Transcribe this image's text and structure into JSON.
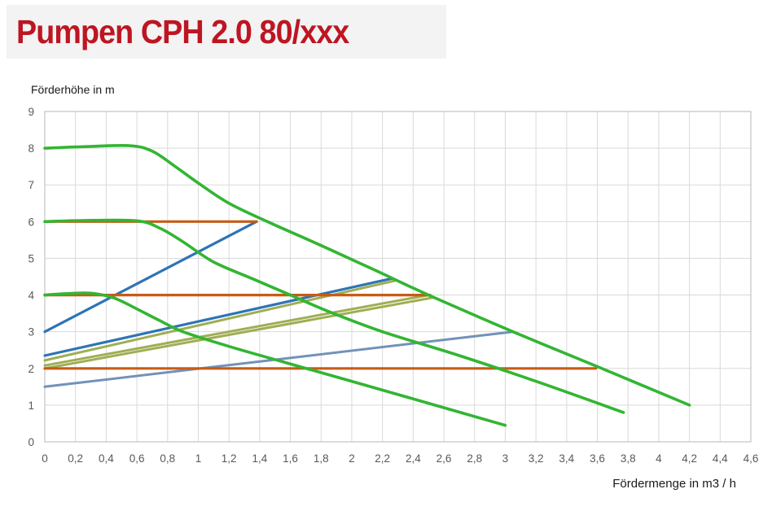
{
  "page": {
    "title": "Pumpen CPH 2.0 80/xxx"
  },
  "colors": {
    "title_red": "#bd1622",
    "pump_green": "#33b533",
    "setpoint_orange": "#c75b16",
    "line_blue": "#2e74b5",
    "line_steel_blue": "#7292b8",
    "line_olive": "#9fae53",
    "grid_gray": "#d9d9d9",
    "plot_border_gray": "#c3c3c3",
    "tick_text_gray": "#595959"
  },
  "chart_data": {
    "type": "line",
    "title": "Pumpen CPH 2.0 80/xxx",
    "ylabel": "Förderhöhe in m",
    "xlabel": "Fördermenge in m3 / h",
    "xlim": [
      0,
      4.6
    ],
    "ylim": [
      0,
      9
    ],
    "grid": {
      "x_step": 0.2,
      "y_step": 1,
      "visible": true
    },
    "legend": "none",
    "x_tick_labels": [
      "0",
      "0,2",
      "0,4",
      "0,6",
      "0,8",
      "1",
      "1,2",
      "1,4",
      "1,6",
      "1,8",
      "2",
      "2,2",
      "2,4",
      "2,6",
      "2,8",
      "3",
      "3,2",
      "3,4",
      "3,6",
      "3,8",
      "4",
      "4,2",
      "4,4",
      "4,6"
    ],
    "y_tick_labels": [
      "0",
      "1",
      "2",
      "3",
      "4",
      "5",
      "6",
      "7",
      "8",
      "9"
    ],
    "series": [
      {
        "name": "system-curve-olive-1",
        "color": "#9fae53",
        "width": 3,
        "smooth": false,
        "points": [
          [
            0,
            2.22
          ],
          [
            2.28,
            4.39
          ]
        ]
      },
      {
        "name": "system-curve-olive-2",
        "color": "#9fae53",
        "width": 3,
        "smooth": false,
        "points": [
          [
            0,
            2.08
          ],
          [
            2.5,
            4.0
          ]
        ]
      },
      {
        "name": "system-curve-olive-3",
        "color": "#9fae53",
        "width": 3,
        "smooth": false,
        "points": [
          [
            0,
            2.0
          ],
          [
            2.53,
            3.93
          ]
        ]
      },
      {
        "name": "proportional-pressure-steel-blue",
        "color": "#7292b8",
        "width": 3,
        "smooth": false,
        "points": [
          [
            0,
            1.5
          ],
          [
            3.05,
            3.0
          ]
        ]
      },
      {
        "name": "proportional-pressure-blue-steep",
        "color": "#2e74b5",
        "width": 3.2,
        "smooth": false,
        "points": [
          [
            0,
            3.0
          ],
          [
            1.38,
            6.0
          ]
        ]
      },
      {
        "name": "proportional-pressure-blue",
        "color": "#2e74b5",
        "width": 3.2,
        "smooth": false,
        "points": [
          [
            0,
            2.35
          ],
          [
            2.26,
            4.45
          ]
        ]
      },
      {
        "name": "constant-pressure-6m",
        "color": "#c75b16",
        "width": 3.2,
        "smooth": false,
        "points": [
          [
            0,
            6
          ],
          [
            1.38,
            6
          ]
        ]
      },
      {
        "name": "constant-pressure-4m",
        "color": "#c75b16",
        "width": 3.2,
        "smooth": false,
        "points": [
          [
            0,
            4
          ],
          [
            2.51,
            4
          ]
        ]
      },
      {
        "name": "constant-pressure-2m",
        "color": "#c75b16",
        "width": 3.2,
        "smooth": false,
        "points": [
          [
            0,
            2
          ],
          [
            3.59,
            2
          ]
        ]
      },
      {
        "name": "pump-curve-8m",
        "color": "#33b533",
        "width": 3.6,
        "smooth": true,
        "points": [
          [
            0,
            8.0
          ],
          [
            0.25,
            8.04
          ],
          [
            0.55,
            8.07
          ],
          [
            0.7,
            7.92
          ],
          [
            0.85,
            7.5
          ],
          [
            1.0,
            7.05
          ],
          [
            1.2,
            6.5
          ],
          [
            1.45,
            6.0
          ],
          [
            1.8,
            5.35
          ],
          [
            2.15,
            4.68
          ],
          [
            2.5,
            4.0
          ],
          [
            3.05,
            3.0
          ],
          [
            3.6,
            2.05
          ],
          [
            4.2,
            1.0
          ]
        ]
      },
      {
        "name": "pump-curve-6m",
        "color": "#33b533",
        "width": 3.6,
        "smooth": true,
        "points": [
          [
            0,
            6.0
          ],
          [
            0.25,
            6.03
          ],
          [
            0.6,
            6.02
          ],
          [
            0.75,
            5.82
          ],
          [
            0.9,
            5.45
          ],
          [
            1.1,
            4.9
          ],
          [
            1.35,
            4.45
          ],
          [
            1.6,
            4.0
          ],
          [
            1.85,
            3.55
          ],
          [
            2.2,
            3.0
          ],
          [
            2.7,
            2.35
          ],
          [
            3.2,
            1.65
          ],
          [
            3.77,
            0.8
          ]
        ]
      },
      {
        "name": "pump-curve-4m",
        "color": "#33b533",
        "width": 3.6,
        "smooth": true,
        "points": [
          [
            0,
            4.0
          ],
          [
            0.15,
            4.04
          ],
          [
            0.3,
            4.05
          ],
          [
            0.45,
            3.92
          ],
          [
            0.6,
            3.62
          ],
          [
            0.75,
            3.3
          ],
          [
            0.9,
            3.0
          ],
          [
            1.2,
            2.6
          ],
          [
            1.56,
            2.17
          ],
          [
            2.0,
            1.65
          ],
          [
            2.5,
            1.05
          ],
          [
            3.0,
            0.45
          ]
        ]
      }
    ]
  }
}
